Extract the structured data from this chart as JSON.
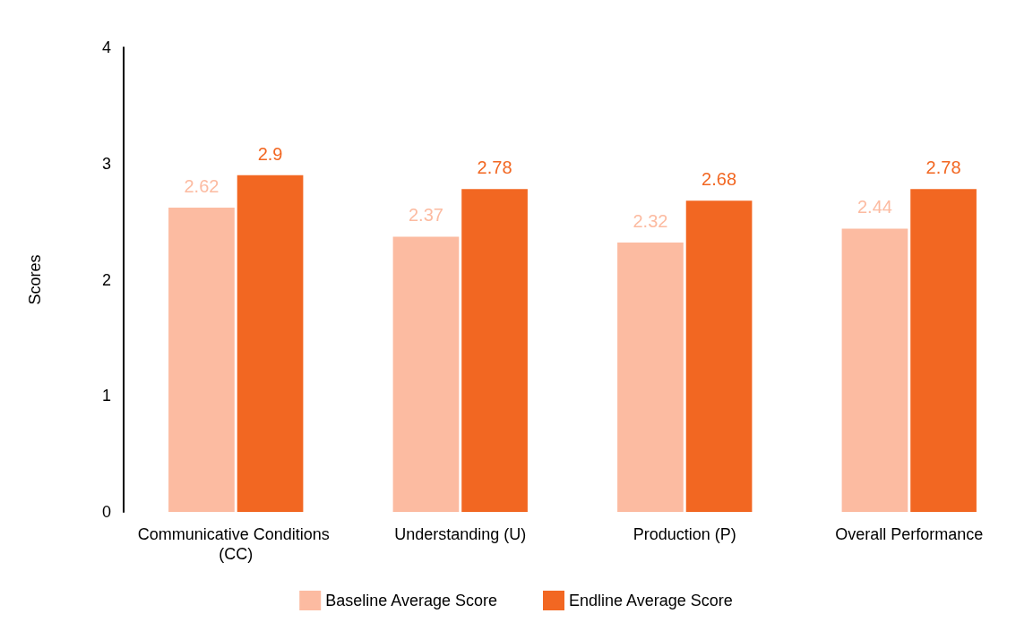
{
  "chart_data": {
    "type": "bar",
    "ylabel": "Scores",
    "categories": [
      "Communicative Conditions (CC)",
      "Understanding (U)",
      "Production (P)",
      "Overall Performance"
    ],
    "series": [
      {
        "name": "Baseline Average Score",
        "color": "#fcbba1",
        "values": [
          2.62,
          2.37,
          2.32,
          2.44
        ]
      },
      {
        "name": "Endline Average Score",
        "color": "#f26722",
        "values": [
          2.9,
          2.78,
          2.68,
          2.78
        ]
      }
    ],
    "ylim": [
      0,
      4
    ],
    "yticks": [
      0,
      1,
      2,
      3,
      4
    ],
    "grid": false,
    "legend": "bottom",
    "data_labels": true
  }
}
